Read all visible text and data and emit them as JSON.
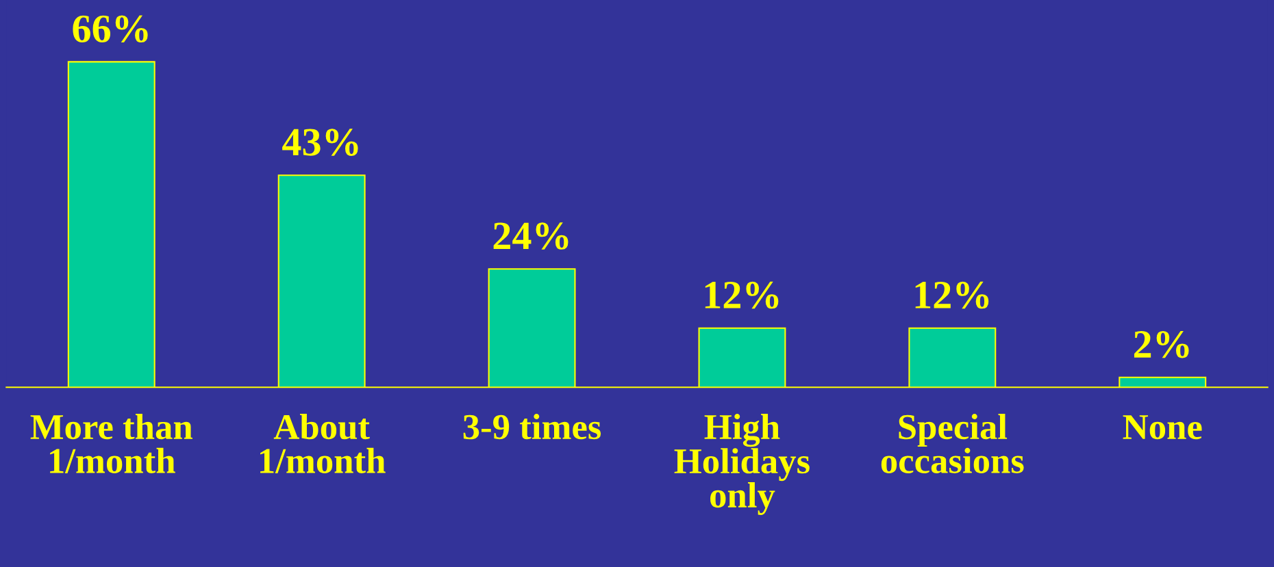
{
  "chart_data": {
    "type": "bar",
    "categories": [
      "More than\n1/month",
      "About\n1/month",
      "3-9 times",
      "High\nHolidays\nonly",
      "Special\noccasions",
      "None"
    ],
    "values": [
      66,
      43,
      24,
      12,
      12,
      2
    ],
    "color": "#00cc99",
    "value_labels": [
      "66%",
      "43%",
      "24%",
      "12%",
      "12%",
      "2%"
    ],
    "grid": false,
    "legend": false
  }
}
